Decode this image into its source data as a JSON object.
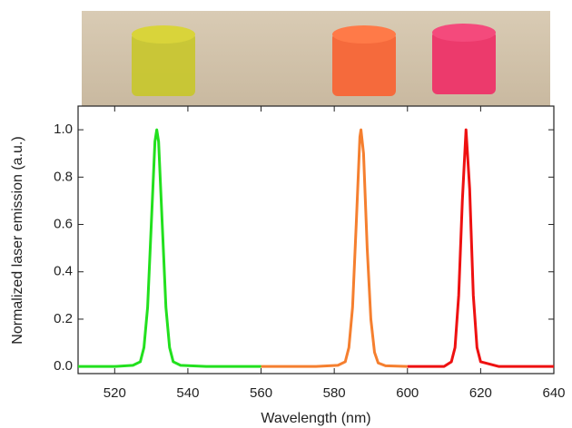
{
  "chart_data": {
    "type": "line",
    "xlabel": "Wavelength (nm)",
    "ylabel": "Normalized laser emission (a.u.)",
    "xlim": [
      510,
      640
    ],
    "xticks": [
      520,
      540,
      560,
      580,
      600,
      620,
      640
    ],
    "ylim": [
      -0.03,
      1.1
    ],
    "yticks": [
      {
        "value": 0,
        "label": "0.0"
      },
      0.2,
      0.4,
      0.6,
      0.8,
      {
        "value": 1,
        "label": "1.0"
      }
    ],
    "series": [
      {
        "color": "#22e01e",
        "x": [
          510,
          520,
          525,
          527,
          528,
          529,
          530,
          531,
          531.5,
          532,
          533,
          534,
          535,
          536,
          538,
          545,
          560
        ],
        "values": [
          0,
          0,
          0.005,
          0.02,
          0.08,
          0.25,
          0.6,
          0.95,
          1.0,
          0.95,
          0.6,
          0.25,
          0.08,
          0.02,
          0.005,
          0,
          0
        ]
      },
      {
        "color": "#f57f2f",
        "x": [
          560,
          575,
          581,
          583,
          584,
          585,
          586,
          587,
          587.3,
          588,
          589,
          590,
          591,
          592,
          594,
          600
        ],
        "values": [
          0,
          0,
          0.005,
          0.02,
          0.08,
          0.25,
          0.6,
          0.97,
          1.0,
          0.9,
          0.5,
          0.2,
          0.06,
          0.015,
          0.003,
          0
        ]
      },
      {
        "color": "#ee1111",
        "x": [
          600,
          610,
          612,
          613,
          614,
          615,
          616,
          617,
          618,
          619,
          620,
          625,
          640
        ],
        "values": [
          0,
          0,
          0.02,
          0.08,
          0.3,
          0.7,
          1.0,
          0.75,
          0.3,
          0.08,
          0.02,
          0,
          0
        ]
      }
    ]
  }
}
